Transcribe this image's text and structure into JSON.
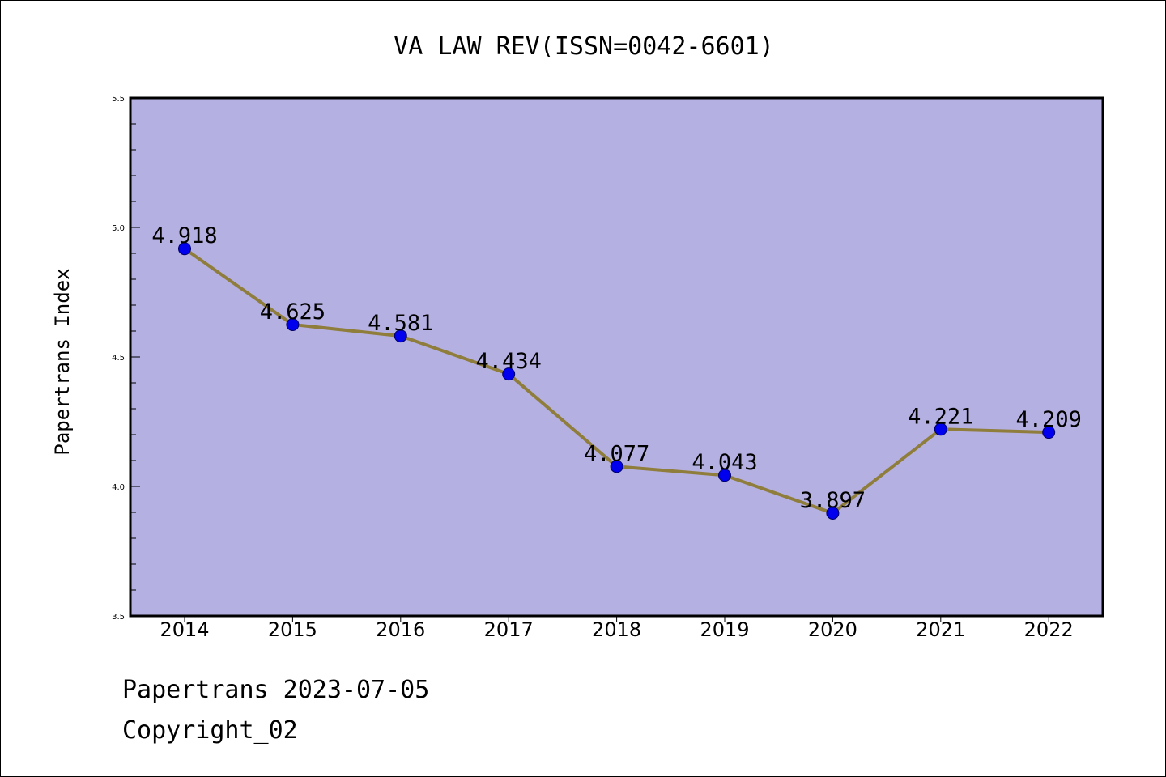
{
  "chart_data": {
    "type": "line",
    "title": "VA LAW REV(ISSN=0042-6601)",
    "xlabel": "",
    "ylabel": "Papertrans Index",
    "categories": [
      "2014",
      "2015",
      "2016",
      "2017",
      "2018",
      "2019",
      "2020",
      "2021",
      "2022"
    ],
    "values": [
      4.918,
      4.625,
      4.581,
      4.434,
      4.077,
      4.043,
      3.897,
      4.221,
      4.209
    ],
    "data_labels": [
      "4.918",
      "4.625",
      "4.581",
      "4.434",
      "4.077",
      "4.043",
      "3.897",
      "4.221",
      "4.209"
    ],
    "ylim": [
      3.5,
      5.5
    ],
    "yticks": [
      "3.5",
      "4.0",
      "4.5",
      "5.0",
      "5.5"
    ],
    "grid": false,
    "colors": {
      "plot_background": "#b5b0e2",
      "line": "#8f7d3c",
      "marker": "#0000ee",
      "marker_edge": "#000066"
    }
  },
  "footer": {
    "date_line": "Papertrans 2023-07-05",
    "copyright": "Copyright_02"
  }
}
